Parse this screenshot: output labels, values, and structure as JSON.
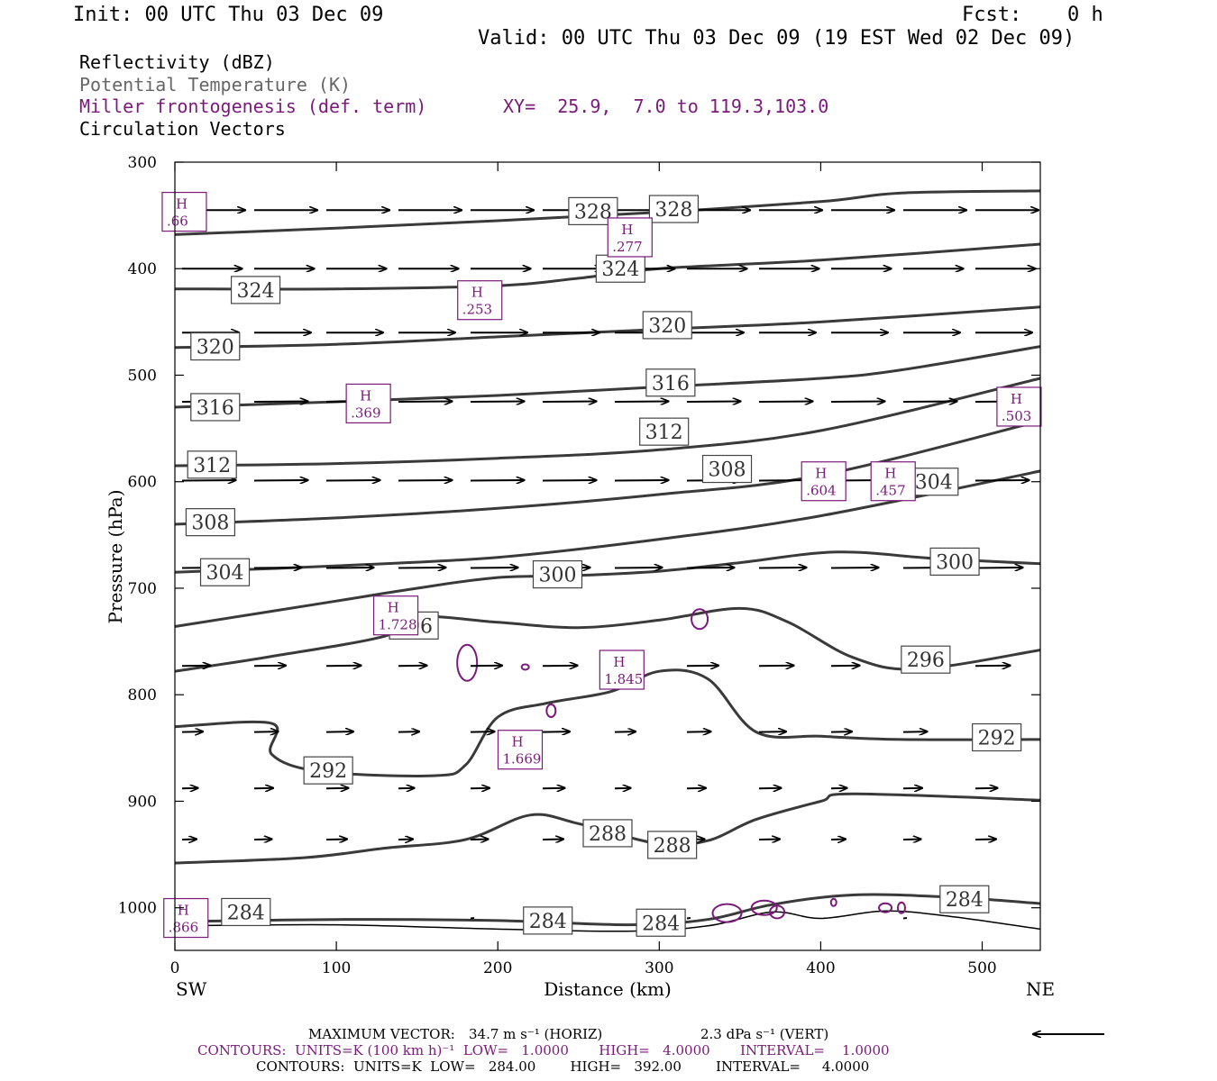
{
  "header": {
    "init": "Init: 00 UTC Thu 03 Dec 09",
    "fcst_label": "Fcst:",
    "fcst_value": "0 h",
    "valid": "Valid: 00 UTC Thu 03 Dec 09 (19 EST Wed 02 Dec 09)"
  },
  "legend": {
    "line1": "Reflectivity (dBZ)",
    "line2": "Potential Temperature (K)",
    "line3": "Miller frontogenesis (def. term)",
    "xy": "XY=  25.9,  7.0 to 119.3,103.0",
    "line4": "Circulation Vectors"
  },
  "colors": {
    "theta": "#3a3a3a",
    "frontogenesis": "#7a1a7a",
    "vectors": "#000000",
    "legend_gray": "#666666"
  },
  "chart_data": {
    "type": "cross-section",
    "xlabel": "Distance (km)",
    "ylabel": "Pressure (hPa)",
    "x_ticks": [
      0,
      100,
      200,
      300,
      400,
      500
    ],
    "y_ticks": [
      300,
      400,
      500,
      600,
      700,
      800,
      900,
      1000
    ],
    "xlim": [
      0,
      536
    ],
    "ylim": [
      1040,
      300
    ],
    "x_end_labels": {
      "left": "SW",
      "right": "NE"
    },
    "theta_contours": [
      {
        "value": 328,
        "points": [
          [
            0,
            368
          ],
          [
            100,
            362
          ],
          [
            200,
            355
          ],
          [
            300,
            347
          ],
          [
            400,
            337
          ],
          [
            450,
            329
          ],
          [
            536,
            327
          ]
        ],
        "labels": [
          [
            259,
            346
          ],
          [
            309,
            344
          ]
        ]
      },
      {
        "value": 324,
        "points": [
          [
            0,
            419
          ],
          [
            100,
            419
          ],
          [
            200,
            416
          ],
          [
            250,
            409
          ],
          [
            300,
            400
          ],
          [
            400,
            392
          ],
          [
            536,
            377
          ]
        ],
        "labels": [
          [
            50,
            420
          ],
          [
            276,
            400
          ]
        ]
      },
      {
        "value": 320,
        "points": [
          [
            0,
            474
          ],
          [
            100,
            471
          ],
          [
            200,
            464
          ],
          [
            300,
            457
          ],
          [
            400,
            450
          ],
          [
            536,
            436
          ]
        ],
        "labels": [
          [
            25,
            473
          ],
          [
            305,
            453
          ]
        ]
      },
      {
        "value": 316,
        "points": [
          [
            0,
            530
          ],
          [
            100,
            525
          ],
          [
            200,
            519
          ],
          [
            300,
            511
          ],
          [
            400,
            503
          ],
          [
            450,
            495
          ],
          [
            536,
            473
          ]
        ],
        "labels": [
          [
            25,
            530
          ],
          [
            307,
            507
          ]
        ]
      },
      {
        "value": 312,
        "points": [
          [
            0,
            585
          ],
          [
            100,
            583
          ],
          [
            200,
            578
          ],
          [
            300,
            570
          ],
          [
            400,
            552
          ],
          [
            536,
            503
          ]
        ],
        "labels": [
          [
            23,
            584
          ],
          [
            303,
            553
          ]
        ]
      },
      {
        "value": 308,
        "points": [
          [
            0,
            640
          ],
          [
            100,
            634
          ],
          [
            200,
            625
          ],
          [
            300,
            612
          ],
          [
            400,
            594
          ],
          [
            536,
            543
          ]
        ],
        "labels": [
          [
            22,
            638
          ],
          [
            342,
            588
          ]
        ]
      },
      {
        "value": 304,
        "points": [
          [
            0,
            685
          ],
          [
            100,
            679
          ],
          [
            200,
            671
          ],
          [
            300,
            654
          ],
          [
            400,
            632
          ],
          [
            536,
            590
          ]
        ],
        "labels": [
          [
            31,
            685
          ],
          [
            470,
            600
          ]
        ]
      },
      {
        "value": 300,
        "points": [
          [
            0,
            736
          ],
          [
            100,
            712
          ],
          [
            150,
            700
          ],
          [
            200,
            690
          ],
          [
            250,
            688
          ],
          [
            300,
            684
          ],
          [
            350,
            676
          ],
          [
            410,
            666
          ],
          [
            470,
            672
          ],
          [
            536,
            677
          ]
        ],
        "labels": [
          [
            237,
            687
          ],
          [
            483,
            675
          ]
        ]
      },
      {
        "value": 296,
        "points": [
          [
            0,
            778
          ],
          [
            60,
            764
          ],
          [
            130,
            745
          ],
          [
            150,
            727
          ],
          [
            200,
            732
          ],
          [
            250,
            737
          ],
          [
            300,
            730
          ],
          [
            350,
            719
          ],
          [
            380,
            732
          ],
          [
            420,
            765
          ],
          [
            460,
            776
          ],
          [
            536,
            758
          ]
        ],
        "labels": [
          [
            148,
            735
          ],
          [
            465,
            767
          ]
        ]
      },
      {
        "value": 292,
        "points": [
          [
            0,
            830
          ],
          [
            60,
            827
          ],
          [
            60,
            856
          ],
          [
            90,
            872
          ],
          [
            160,
            876
          ],
          [
            180,
            866
          ],
          [
            200,
            821
          ],
          [
            230,
            808
          ],
          [
            270,
            797
          ],
          [
            300,
            778
          ],
          [
            330,
            785
          ],
          [
            360,
            835
          ],
          [
            400,
            839
          ],
          [
            450,
            842
          ],
          [
            536,
            842
          ]
        ],
        "labels": [
          [
            95,
            871
          ],
          [
            509,
            840
          ]
        ]
      },
      {
        "value": 288,
        "points": [
          [
            0,
            958
          ],
          [
            80,
            953
          ],
          [
            130,
            944
          ],
          [
            180,
            936
          ],
          [
            220,
            913
          ],
          [
            250,
            921
          ],
          [
            300,
            940
          ],
          [
            330,
            937
          ],
          [
            360,
            917
          ],
          [
            400,
            900
          ],
          [
            420,
            893
          ],
          [
            536,
            899
          ]
        ],
        "labels": [
          [
            268,
            930
          ],
          [
            308,
            941
          ]
        ]
      },
      {
        "value": 284,
        "points": [
          [
            0,
            1013
          ],
          [
            100,
            1011
          ],
          [
            200,
            1012
          ],
          [
            280,
            1016
          ],
          [
            330,
            1011
          ],
          [
            370,
            997
          ],
          [
            420,
            988
          ],
          [
            480,
            990
          ],
          [
            536,
            996
          ]
        ],
        "labels": [
          [
            44,
            1004
          ],
          [
            231,
            1012
          ],
          [
            301,
            1014
          ],
          [
            489,
            992
          ]
        ]
      }
    ],
    "frontogenesis_maxima": [
      {
        "label": "H",
        "value": ".66",
        "x": 5,
        "y": 347
      },
      {
        "label": "H",
        "value": ".277",
        "x": 281,
        "y": 371
      },
      {
        "label": "H",
        "value": ".253",
        "x": 188,
        "y": 430
      },
      {
        "label": "H",
        "value": ".369",
        "x": 119,
        "y": 527
      },
      {
        "label": "H",
        "value": ".503",
        "x": 522,
        "y": 530
      },
      {
        "label": "H",
        "value": ".604",
        "x": 401,
        "y": 600
      },
      {
        "label": "H",
        "value": ".457",
        "x": 444,
        "y": 600
      },
      {
        "label": "H",
        "value": "1.728",
        "x": 136,
        "y": 726
      },
      {
        "label": "H",
        "value": "1.845",
        "x": 276,
        "y": 777
      },
      {
        "label": "H",
        "value": "1.669",
        "x": 213,
        "y": 852
      },
      {
        "label": "H",
        "value": ".866",
        "x": 6,
        "y": 1010
      }
    ],
    "vector_rows": [
      {
        "p": 345,
        "speed": 1.0
      },
      {
        "p": 400,
        "speed": 0.95
      },
      {
        "p": 460,
        "speed": 0.9
      },
      {
        "p": 525,
        "speed": 0.85
      },
      {
        "p": 599,
        "speed": 0.85
      },
      {
        "p": 681,
        "speed": 0.75
      },
      {
        "p": 773,
        "speed": 0.5
      },
      {
        "p": 835,
        "speed": 0.38
      },
      {
        "p": 888,
        "speed": 0.3
      },
      {
        "p": 936,
        "speed": 0.28
      },
      {
        "p": 1010,
        "speed": 0.05
      }
    ]
  },
  "footer": {
    "max_vector_label": "MAXIMUM VECTOR:",
    "max_vector_horiz": "34.7 m s⁻¹ (HORIZ)",
    "max_vector_vert": "2.3 dPa s⁻¹ (VERT)",
    "contours1": "CONTOURS:  UNITS=K (100 km h)⁻¹  LOW=   1.0000       HIGH=   4.0000       INTERVAL=    1.0000",
    "contours2": "CONTOURS:  UNITS=K  LOW=   284.00        HIGH=   392.00        INTERVAL=     4.0000"
  }
}
